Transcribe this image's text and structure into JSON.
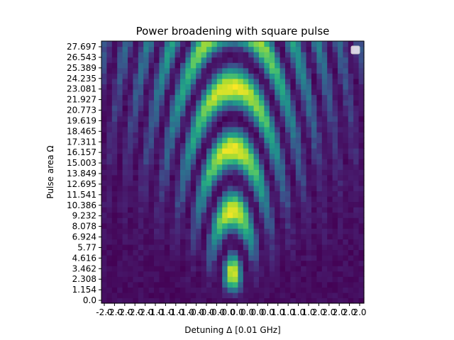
{
  "chart_data": {
    "type": "heatmap",
    "title": "Power broadening with square pulse",
    "xlabel": "Detuning Δ [0.01 GHz]",
    "ylabel": "Pulse area Ω",
    "colormap": "viridis",
    "legend": {
      "placement": "top-right",
      "entries": []
    },
    "y_tick_labels": [
      "0.0",
      "1.154",
      "2.308",
      "3.462",
      "4.616",
      "5.77",
      "6.924",
      "8.078",
      "9.232",
      "10.386",
      "11.541",
      "12.695",
      "13.849",
      "15.003",
      "16.157",
      "17.311",
      "18.465",
      "19.619",
      "20.773",
      "21.927",
      "23.081",
      "24.235",
      "25.389",
      "26.543",
      "27.697"
    ],
    "x_tick_labels": [
      "-2.0",
      "-2.0",
      "-2.0",
      "-2.0",
      "-2.0",
      "-1.0",
      "-1.0",
      "-1.0",
      "-1.0",
      "-0.0",
      "-0.0",
      "-0.0",
      "-0.0",
      "0.0",
      "0.0",
      "0.0",
      "0.0",
      "1.0",
      "1.0",
      "1.0",
      "1.0",
      "2.0",
      "2.0",
      "2.0",
      "2.0",
      "2.0"
    ],
    "x_range": [
      -2.0,
      2.0
    ],
    "y_range": [
      0.0,
      27.697
    ],
    "n_cols": 50,
    "n_rows": 49,
    "description_of_values": "excitation probability vs detuning and pulse area; central lobe widens with pulse area (V-shaped fringes)"
  },
  "colors": {
    "background": "#ffffff",
    "axis": "#000000",
    "cmap_low": "#440154",
    "cmap_mid": "#21918c",
    "cmap_high": "#fde725"
  }
}
